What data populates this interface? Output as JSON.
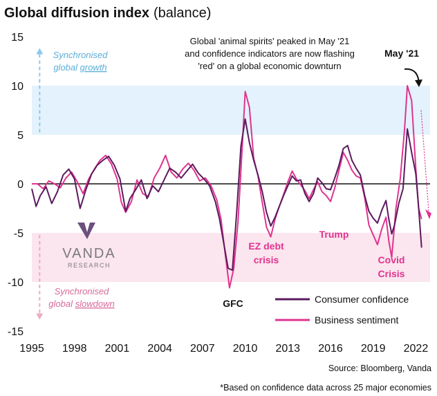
{
  "title": "Global diffusion index",
  "subtitle": "(balance)",
  "annotation": [
    "Global 'animal spirits' peaked in May '21",
    "and confidence indicators are now flashing",
    "'red' on a global economic downturn"
  ],
  "peak_label": "May '21",
  "zone_up": [
    "Synchronised",
    "global ",
    "growth"
  ],
  "zone_down": [
    "Synchronised",
    "global ",
    "slowdown"
  ],
  "logo": {
    "name": "VANDA",
    "sub": "RESEARCH"
  },
  "events": {
    "gfc": "GFC",
    "ez1": "EZ debt",
    "ez2": "crisis",
    "trump": "Trump",
    "covid1": "Covid",
    "covid2": "Crisis"
  },
  "footer": {
    "source": "Source: Bloomberg, Vanda",
    "note": "*Based on confidence data across 25 major economies"
  },
  "colors": {
    "consumer": "#5b1a5e",
    "business": "#e0338f",
    "upper_band": "#e3f2fc",
    "lower_band": "#fbe5ee",
    "up_arrow": "#8ec9ea",
    "down_arrow": "#eeaac6"
  },
  "chart_data": {
    "type": "line",
    "xlabel": "",
    "ylabel": "",
    "xlim": [
      1995,
      2023
    ],
    "ylim": [
      -15,
      15
    ],
    "x_ticks": [
      1995,
      1998,
      2001,
      2004,
      2007,
      2010,
      2013,
      2016,
      2019,
      2022
    ],
    "y_ticks": [
      15,
      10,
      5,
      0,
      -5,
      -10,
      -15
    ],
    "bands": [
      {
        "from": 5,
        "to": 10
      },
      {
        "from": -10,
        "to": -5
      }
    ],
    "legend": "bottom-right",
    "series": [
      {
        "name": "Consumer confidence",
        "x": [
          1995.0,
          1995.3,
          1995.6,
          1996.0,
          1996.4,
          1996.8,
          1997.2,
          1997.6,
          1998.0,
          1998.4,
          1998.8,
          1999.2,
          1999.6,
          2000.0,
          2000.4,
          2000.8,
          2001.2,
          2001.6,
          2001.9,
          2002.3,
          2002.7,
          2003.1,
          2003.5,
          2003.9,
          2004.3,
          2004.7,
          2005.1,
          2005.5,
          2005.9,
          2006.3,
          2006.7,
          2007.1,
          2007.5,
          2007.9,
          2008.2,
          2008.5,
          2008.8,
          2009.1,
          2009.4,
          2009.7,
          2010.0,
          2010.3,
          2010.6,
          2010.9,
          2011.2,
          2011.5,
          2011.8,
          2012.1,
          2012.4,
          2012.7,
          2013.0,
          2013.3,
          2013.6,
          2013.9,
          2014.2,
          2014.5,
          2014.8,
          2015.1,
          2015.4,
          2015.7,
          2016.0,
          2016.3,
          2016.6,
          2016.9,
          2017.2,
          2017.5,
          2017.8,
          2018.1,
          2018.4,
          2018.7,
          2019.0,
          2019.3,
          2019.6,
          2019.9,
          2020.1,
          2020.3,
          2020.5,
          2020.8,
          2021.1,
          2021.4,
          2021.7,
          2022.0,
          2022.2,
          2022.4
        ],
        "y": [
          -0.5,
          -2.3,
          -1.2,
          -0.3,
          -2.0,
          -0.8,
          0.9,
          1.5,
          0.5,
          -2.5,
          -0.6,
          1.0,
          1.9,
          2.4,
          2.8,
          1.9,
          0.5,
          -2.8,
          -1.5,
          -0.6,
          0.4,
          -1.5,
          -0.2,
          -0.8,
          0.4,
          1.6,
          1.2,
          0.6,
          1.3,
          2.0,
          1.1,
          0.5,
          -0.2,
          -1.8,
          -3.6,
          -6.1,
          -8.6,
          -8.8,
          -3.0,
          3.8,
          6.6,
          4.2,
          2.4,
          0.9,
          -0.8,
          -2.9,
          -4.3,
          -3.4,
          -2.3,
          -1.2,
          -0.2,
          0.8,
          0.3,
          0.4,
          -1.0,
          -1.8,
          -1.0,
          0.6,
          0.1,
          -0.5,
          -0.6,
          0.6,
          1.9,
          3.6,
          3.9,
          2.4,
          1.6,
          0.9,
          -1.2,
          -2.8,
          -3.5,
          -4.0,
          -2.7,
          -1.7,
          -3.6,
          -5.1,
          -4.2,
          -2.0,
          -0.5,
          5.6,
          3.2,
          1.0,
          -2.5,
          -6.5
        ]
      },
      {
        "name": "Business sentiment",
        "x": [
          1995.0,
          1995.4,
          1995.8,
          1996.2,
          1996.6,
          1997.0,
          1997.4,
          1997.8,
          1998.2,
          1998.6,
          1999.0,
          1999.4,
          1999.8,
          2000.2,
          2000.6,
          2001.0,
          2001.3,
          2001.6,
          2002.0,
          2002.4,
          2002.8,
          2003.2,
          2003.6,
          2004.0,
          2004.4,
          2004.8,
          2005.2,
          2005.6,
          2006.0,
          2006.4,
          2006.8,
          2007.2,
          2007.6,
          2008.0,
          2008.3,
          2008.6,
          2008.9,
          2009.2,
          2009.5,
          2009.8,
          2010.0,
          2010.3,
          2010.6,
          2010.9,
          2011.2,
          2011.5,
          2011.8,
          2012.1,
          2012.4,
          2012.7,
          2013.0,
          2013.3,
          2013.6,
          2013.9,
          2014.2,
          2014.5,
          2014.8,
          2015.1,
          2015.4,
          2015.7,
          2016.0,
          2016.3,
          2016.6,
          2016.9,
          2017.2,
          2017.5,
          2017.8,
          2018.1,
          2018.4,
          2018.7,
          2019.0,
          2019.3,
          2019.6,
          2019.9,
          2020.1,
          2020.3,
          2020.6,
          2020.9,
          2021.2,
          2021.4,
          2021.7,
          2022.0,
          2022.2,
          2022.4
        ],
        "y": [
          0.0,
          0.0,
          -0.5,
          0.3,
          0.0,
          -0.4,
          0.6,
          1.2,
          0.2,
          -1.0,
          0.5,
          1.5,
          2.4,
          2.9,
          2.0,
          0.5,
          -1.9,
          -2.9,
          -1.8,
          0.4,
          -1.0,
          -1.3,
          0.6,
          1.6,
          2.9,
          1.2,
          0.6,
          1.5,
          2.1,
          1.4,
          0.3,
          0.6,
          -0.2,
          -1.6,
          -3.6,
          -7.2,
          -10.6,
          -8.6,
          -3.8,
          4.0,
          9.4,
          7.8,
          2.6,
          0.8,
          -1.9,
          -4.4,
          -5.4,
          -3.6,
          -2.3,
          -1.1,
          0.2,
          1.3,
          0.5,
          -0.1,
          -0.7,
          -1.5,
          -0.6,
          0.2,
          -0.8,
          -1.2,
          -1.8,
          -0.4,
          1.4,
          3.2,
          2.4,
          1.4,
          0.8,
          0.6,
          -1.4,
          -4.2,
          -5.2,
          -6.2,
          -4.6,
          -3.4,
          -5.8,
          -7.5,
          -2.5,
          0.5,
          5.5,
          10.0,
          8.5,
          1.5,
          -2.5,
          -3.6
        ]
      }
    ]
  }
}
